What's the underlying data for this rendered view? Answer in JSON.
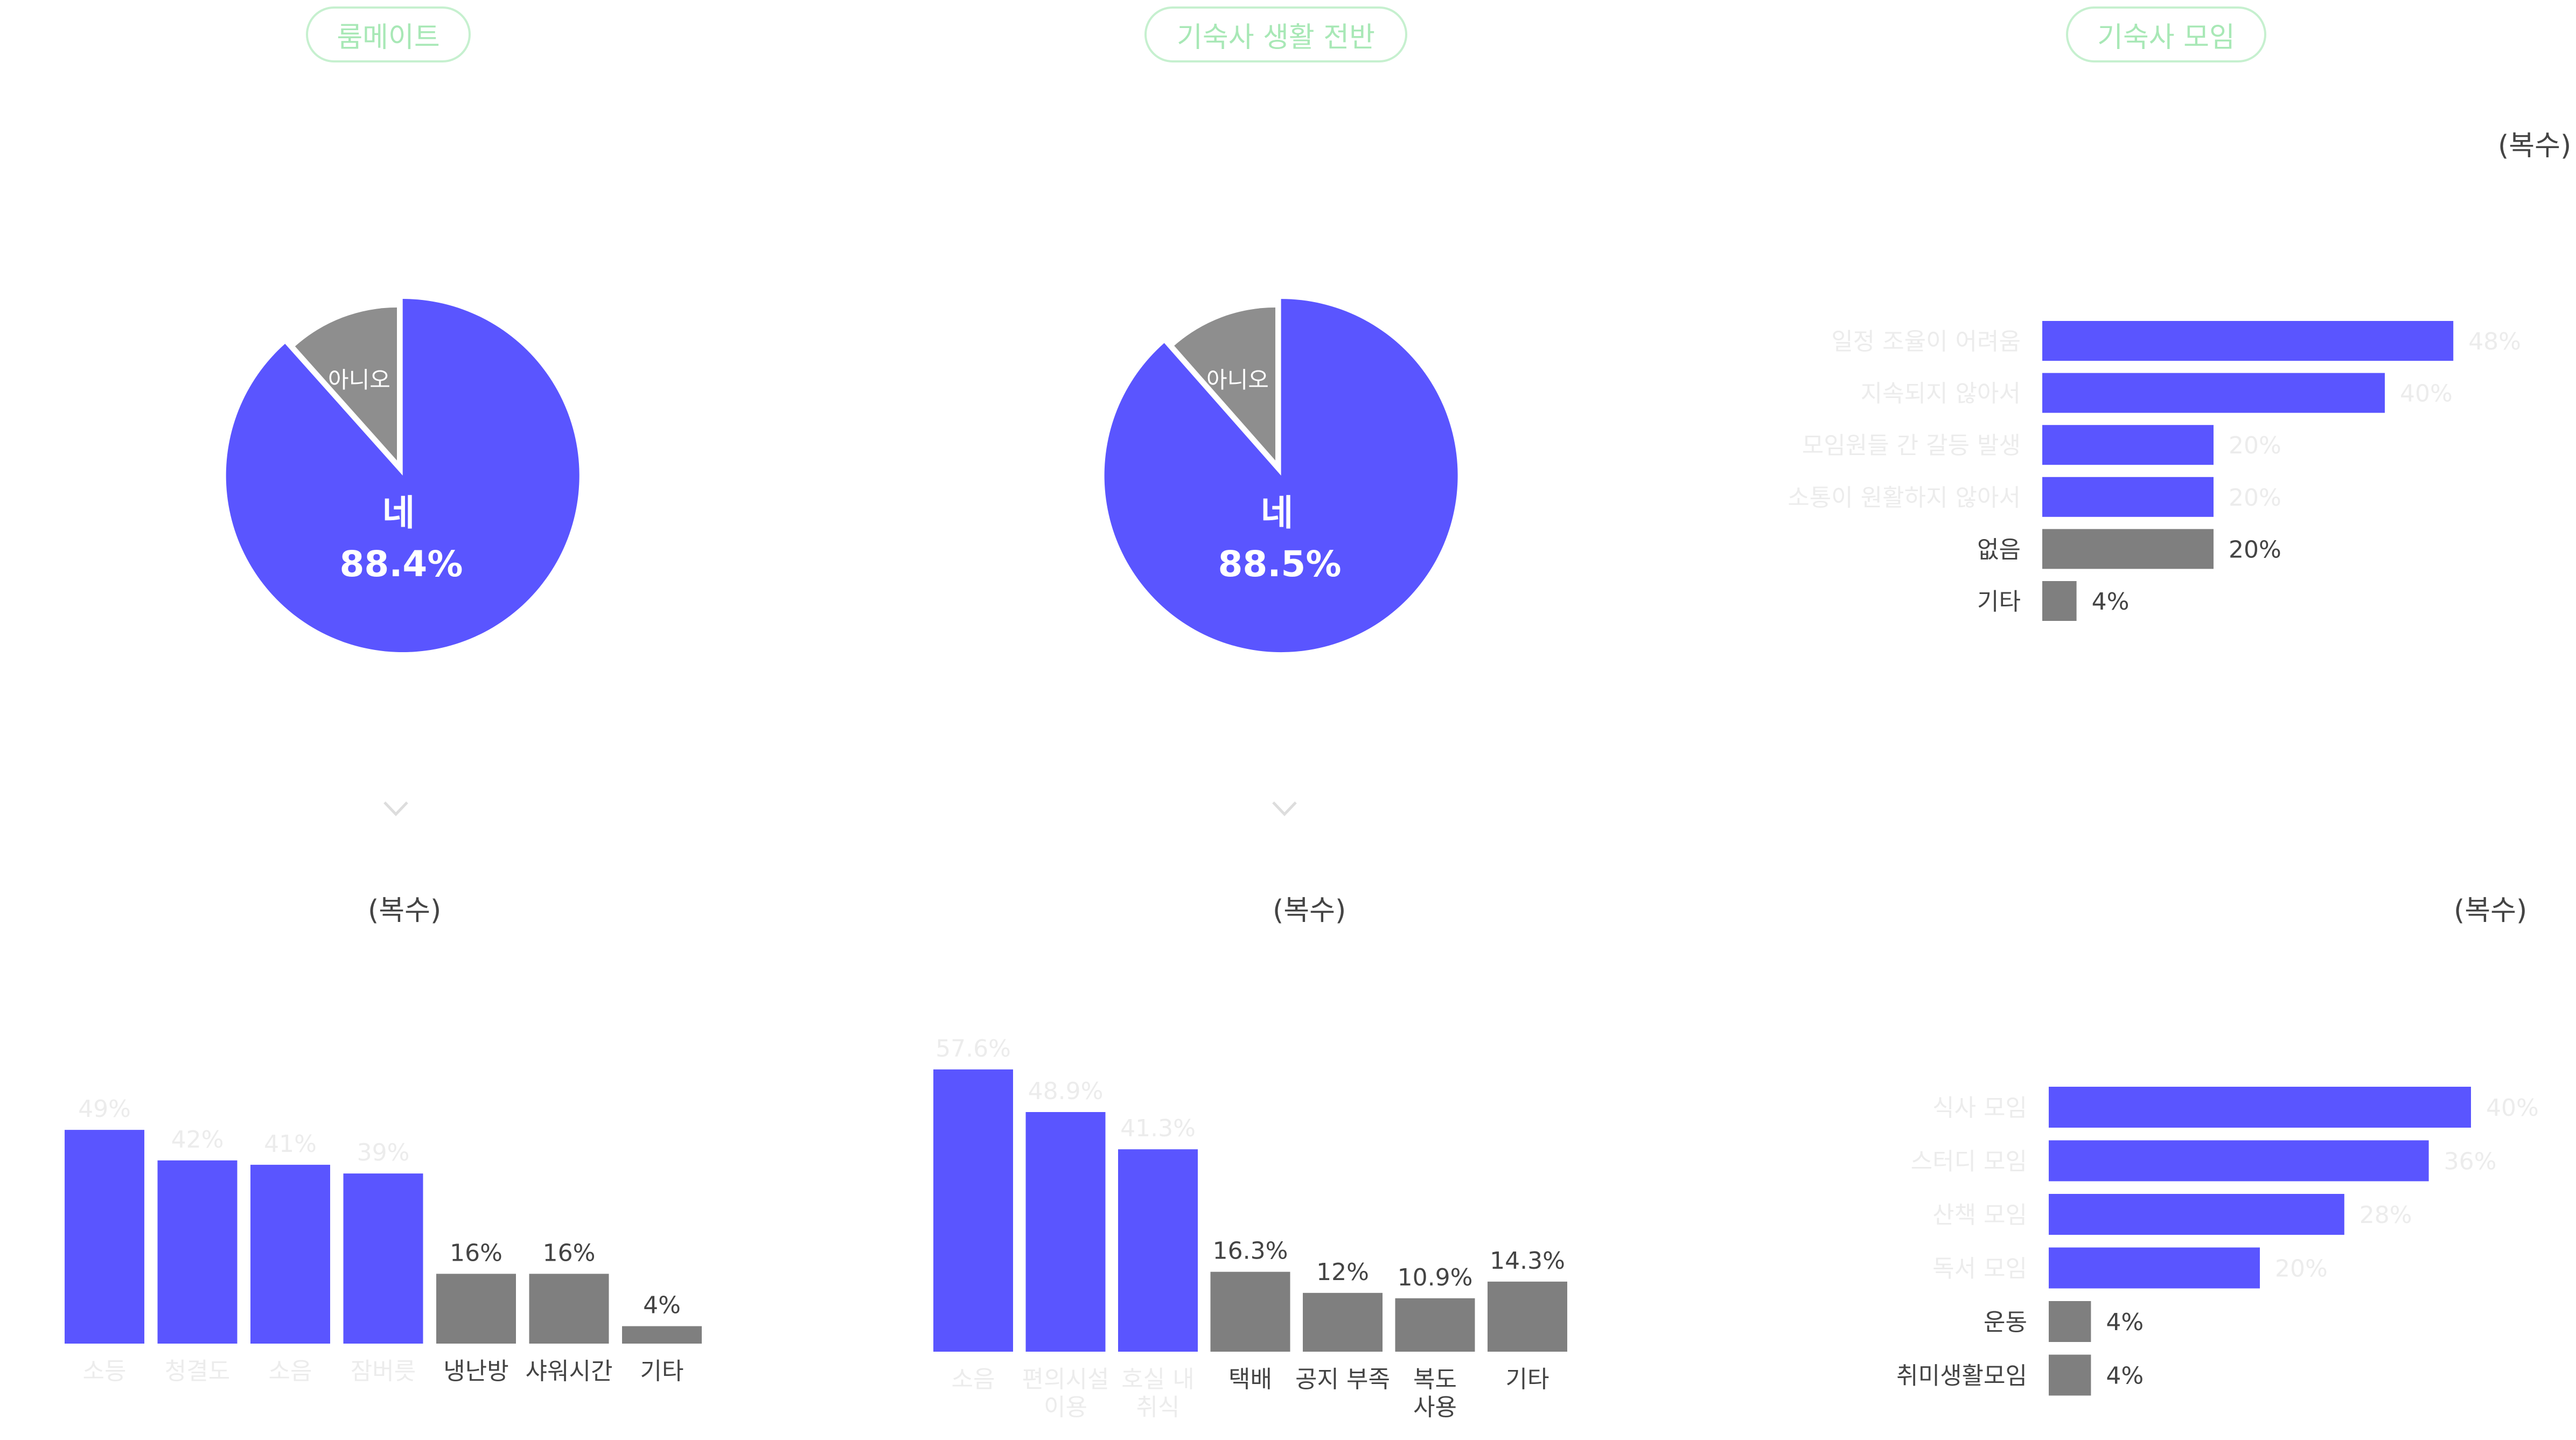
{
  "colors": {
    "accent": "#5a55ff",
    "muted": "#7f7f7f",
    "pie_muted": "#8e8e8e",
    "tag_border": "#c6f0cf",
    "tag_text": "#a8e8b6",
    "faint_text": "#ececec",
    "dark_text": "#444444"
  },
  "headers": [
    "룸메이트",
    "기숙사 생활 전반",
    "기숙사 모임"
  ],
  "multi_label": "(복수)",
  "chart_data": [
    {
      "type": "pie",
      "slices": [
        {
          "label": "네",
          "value": 88.4,
          "value_label": "88.4%",
          "color": "#5a55ff",
          "exploded": true
        },
        {
          "label": "아니오",
          "value": 11.6,
          "color": "#8e8e8e"
        }
      ]
    },
    {
      "type": "pie",
      "slices": [
        {
          "label": "네",
          "value": 88.5,
          "value_label": "88.5%",
          "color": "#5a55ff",
          "exploded": true
        },
        {
          "label": "아니오",
          "value": 11.5,
          "color": "#8e8e8e"
        }
      ]
    },
    {
      "type": "bar",
      "orientation": "horizontal",
      "categories": [
        "일정 조율이 어려움",
        "지속되지 않아서",
        "모임원들 간 갈등 발생",
        "소통이 원활하지 않아서",
        "없음",
        "기타"
      ],
      "values": [
        48,
        40,
        20,
        20,
        20,
        4
      ],
      "value_labels": [
        "48%",
        "40%",
        "20%",
        "20%",
        "20%",
        "4%"
      ],
      "highlight": [
        true,
        true,
        true,
        true,
        false,
        false
      ]
    },
    {
      "type": "bar",
      "orientation": "vertical",
      "categories": [
        "소등",
        "청결도",
        "소음",
        "잠버릇",
        "냉난방",
        "샤워시간",
        "기타"
      ],
      "values": [
        49,
        42,
        41,
        39,
        16,
        16,
        4
      ],
      "value_labels": [
        "49%",
        "42%",
        "41%",
        "39%",
        "16%",
        "16%",
        "4%"
      ],
      "highlight": [
        true,
        true,
        true,
        true,
        false,
        false,
        false
      ]
    },
    {
      "type": "bar",
      "orientation": "vertical",
      "categories": [
        "소음",
        "편의시설 이용",
        "호실 내 취식",
        "택배",
        "공지 부족",
        "복도 사용",
        "기타"
      ],
      "category_lines": [
        [
          "소음"
        ],
        [
          "편의시설",
          "이용"
        ],
        [
          "호실 내",
          "취식"
        ],
        [
          "택배"
        ],
        [
          "공지 부족"
        ],
        [
          "복도",
          "사용"
        ],
        [
          "기타"
        ]
      ],
      "values": [
        57.6,
        48.9,
        41.3,
        16.3,
        12,
        10.9,
        14.3
      ],
      "value_labels": [
        "57.6%",
        "48.9%",
        "41.3%",
        "16.3%",
        "12%",
        "10.9%",
        "14.3%"
      ],
      "highlight": [
        true,
        true,
        true,
        false,
        false,
        false,
        false
      ]
    },
    {
      "type": "bar",
      "orientation": "horizontal",
      "categories": [
        "식사 모임",
        "스터디 모임",
        "산책 모임",
        "독서 모임",
        "운동",
        "취미생활모임"
      ],
      "values": [
        40,
        36,
        28,
        20,
        4,
        4
      ],
      "value_labels": [
        "40%",
        "36%",
        "28%",
        "20%",
        "4%",
        "4%"
      ],
      "highlight": [
        true,
        true,
        true,
        true,
        false,
        false
      ]
    }
  ]
}
